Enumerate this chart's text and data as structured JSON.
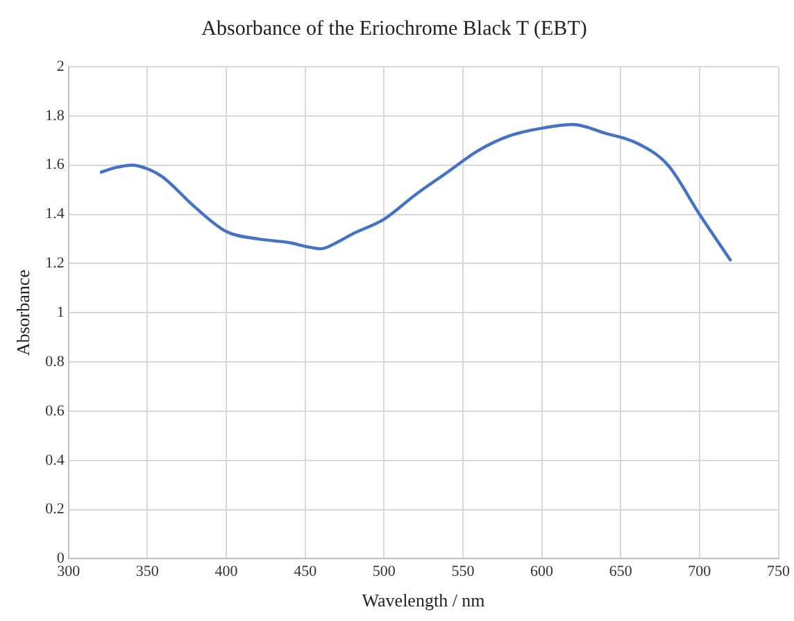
{
  "chart_data": {
    "type": "line",
    "title": "Absorbance of the Eriochrome Black T (EBT)",
    "xlabel": "Wavelength / nm",
    "ylabel": "Absorbance",
    "x": [
      320,
      330,
      340,
      350,
      360,
      380,
      400,
      420,
      440,
      450,
      460,
      470,
      480,
      500,
      520,
      540,
      560,
      580,
      600,
      620,
      640,
      660,
      680,
      700,
      720
    ],
    "series": [
      {
        "color": "#4472c4",
        "values": [
          1.57,
          1.59,
          1.6,
          1.585,
          1.55,
          1.43,
          1.33,
          1.3,
          1.285,
          1.27,
          1.26,
          1.285,
          1.32,
          1.38,
          1.48,
          1.57,
          1.66,
          1.72,
          1.75,
          1.765,
          1.73,
          1.69,
          1.6,
          1.4,
          1.21
        ]
      }
    ],
    "xlim": [
      300,
      750
    ],
    "xticks": [
      300,
      350,
      400,
      450,
      500,
      550,
      600,
      650,
      700,
      750
    ],
    "ylim": [
      0,
      2
    ],
    "yticks": [
      0,
      0.2,
      0.4,
      0.6,
      0.8,
      1,
      1.2,
      1.4,
      1.6,
      1.8,
      2
    ],
    "grid": true,
    "legend": false,
    "marker": "none",
    "line_style": "solid"
  }
}
